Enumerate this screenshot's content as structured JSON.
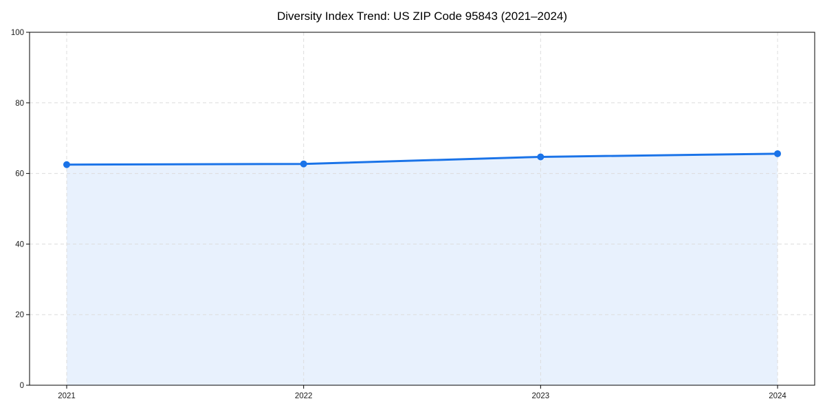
{
  "chart_data": {
    "type": "area",
    "title": "Diversity Index Trend: US ZIP Code 95843 (2021–2024)",
    "x": [
      2021,
      2022,
      2023,
      2024
    ],
    "series": [
      {
        "name": "Diversity Index",
        "values": [
          62.5,
          62.7,
          64.7,
          65.6
        ]
      }
    ],
    "xlabel": "",
    "ylabel": "",
    "xticks": [
      "2021",
      "2022",
      "2023",
      "2024"
    ],
    "yticks": [
      0,
      20,
      40,
      60,
      80,
      100
    ],
    "ylim": [
      0,
      100
    ],
    "grid": true,
    "grid_style": "dashed",
    "legend": false,
    "colors": {
      "line": "#1a73e8",
      "marker": "#1a73e8",
      "fill": "rgba(26,115,232,0.10)",
      "grid": "#dcdcdc",
      "spine": "#000000",
      "title": "#000000",
      "tick_label": "#1a1a1a",
      "background": "#ffffff"
    }
  }
}
